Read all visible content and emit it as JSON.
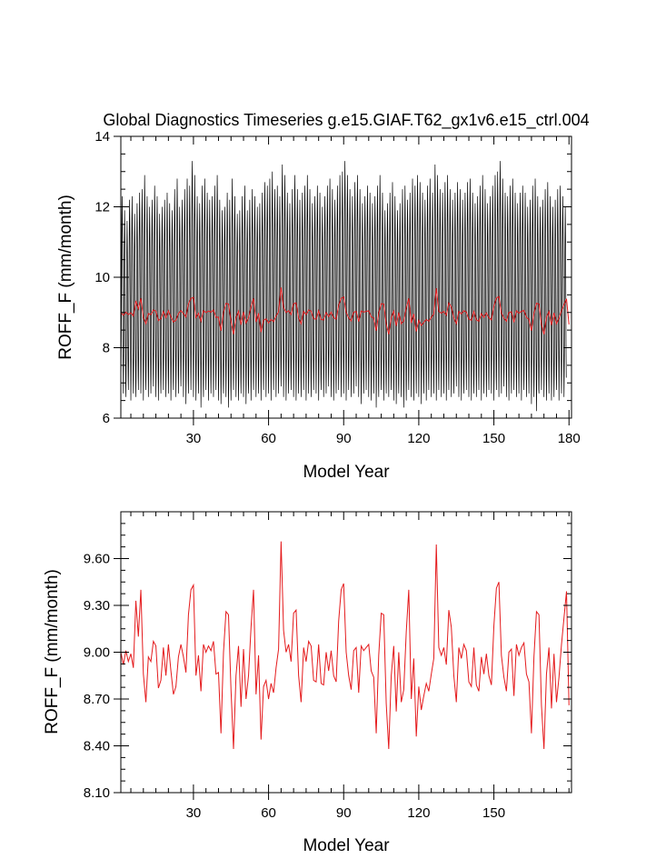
{
  "chart_data": [
    {
      "type": "line",
      "title": "Global Diagnostics Timeseries g.e15.GIAF.T62_gx1v6.e15_ctrl.004",
      "xlabel": "Model Year",
      "ylabel": "ROFF_F (mm/month)",
      "xlim": [
        1,
        181
      ],
      "ylim": [
        6,
        14
      ],
      "xticks": [
        30,
        60,
        90,
        120,
        150,
        180
      ],
      "yticks": [
        6,
        8,
        10,
        12,
        14
      ],
      "ytick_labels": [
        "6",
        "8",
        "10",
        "12",
        "14"
      ],
      "grid": false,
      "series": [
        {
          "color": "#000000",
          "kind": "monthly",
          "envelope_max": [
            12.3,
            11.9,
            11.6,
            12.2,
            12.3,
            11.8,
            12.1,
            12.4,
            12.5,
            12.9,
            12.3,
            12.0,
            12.2,
            12.6,
            12.3,
            11.8,
            12.0,
            12.2,
            12.4,
            12.1,
            11.9,
            12.5,
            12.8,
            12.0,
            12.2,
            12.5,
            12.8,
            12.6,
            13.3,
            12.9,
            12.3,
            12.1,
            12.6,
            12.8,
            12.4,
            12.2,
            12.3,
            12.6,
            12.9,
            12.2,
            11.9,
            12.0,
            12.4,
            12.2,
            12.8,
            12.3,
            11.8,
            11.9,
            12.3,
            12.6,
            11.9,
            12.2,
            12.5,
            12.3,
            12.0,
            12.1,
            12.4,
            12.7,
            12.6,
            12.8,
            13.0,
            12.5,
            12.6,
            12.3,
            13.2,
            12.9,
            12.4,
            12.1,
            12.5,
            12.9,
            12.5,
            12.2,
            12.4,
            12.6,
            12.9,
            12.5,
            12.1,
            12.3,
            12.6,
            12.4,
            12.0,
            12.3,
            12.6,
            12.8,
            12.5,
            12.2,
            12.6,
            12.9,
            13.0,
            13.3,
            12.9,
            12.5,
            12.3,
            12.7,
            12.9,
            12.5,
            12.1,
            12.3,
            12.6,
            12.4,
            12.1,
            12.3,
            12.6,
            12.9,
            12.4,
            11.9,
            12.1,
            12.4,
            12.7,
            12.3,
            11.9,
            12.1,
            12.5,
            12.6,
            12.2,
            12.4,
            12.8,
            12.6,
            12.9,
            12.7,
            12.4,
            12.2,
            12.6,
            12.8,
            12.4,
            13.2,
            12.9,
            12.5,
            12.4,
            12.7,
            12.9,
            12.5,
            12.2,
            12.4,
            12.7,
            12.5,
            12.2,
            12.4,
            12.7,
            12.8,
            12.4,
            12.1,
            12.3,
            12.6,
            12.9,
            12.5,
            12.1,
            12.3,
            12.6,
            12.9,
            13.0,
            13.3,
            12.8,
            12.4,
            12.3,
            12.6,
            12.8,
            12.4,
            12.1,
            12.4,
            12.6,
            12.4,
            12.0,
            12.2,
            12.6,
            12.8,
            12.3,
            12.0,
            12.2,
            12.5,
            12.7,
            12.3,
            12.0,
            12.2,
            12.5,
            12.6,
            12.3,
            12.0
          ],
          "envelope_min": [
            6.9,
            6.7,
            6.6,
            6.8,
            6.5,
            6.7,
            6.6,
            6.8,
            6.7,
            6.5,
            6.8,
            6.6,
            6.7,
            6.9,
            6.6,
            6.5,
            6.7,
            6.8,
            6.6,
            6.7,
            6.5,
            6.8,
            6.6,
            6.7,
            6.9,
            6.6,
            6.4,
            6.7,
            6.8,
            6.6,
            6.5,
            6.7,
            6.3,
            6.6,
            6.8,
            6.5,
            6.7,
            6.6,
            6.8,
            6.5,
            6.4,
            6.7,
            6.6,
            6.3,
            6.5,
            6.8,
            6.6,
            6.5,
            6.7,
            6.6,
            6.4,
            6.7,
            6.5,
            6.8,
            6.6,
            6.7,
            6.5,
            6.8,
            6.6,
            6.7,
            6.5,
            6.8,
            6.6,
            6.7,
            6.9,
            6.6,
            6.5,
            6.7,
            6.8,
            6.6,
            6.5,
            6.7,
            6.6,
            6.8,
            6.5,
            6.7,
            6.6,
            6.8,
            6.7,
            6.5,
            6.8,
            6.6,
            6.7,
            6.9,
            6.6,
            6.5,
            6.7,
            6.8,
            6.6,
            6.7,
            6.5,
            6.8,
            6.6,
            6.7,
            6.9,
            6.6,
            6.4,
            6.7,
            6.8,
            6.6,
            6.5,
            6.7,
            6.3,
            6.6,
            6.8,
            6.5,
            6.7,
            6.6,
            6.8,
            6.5,
            6.4,
            6.7,
            6.6,
            6.3,
            6.5,
            6.8,
            6.6,
            6.5,
            6.7,
            6.6,
            6.4,
            6.7,
            6.5,
            6.8,
            6.6,
            6.7,
            6.5,
            6.8,
            6.6,
            6.7,
            6.5,
            6.8,
            6.6,
            6.7,
            6.9,
            6.6,
            6.5,
            6.7,
            6.8,
            6.6,
            6.5,
            6.7,
            6.6,
            6.8,
            6.5,
            6.7,
            6.6,
            6.8,
            6.7,
            6.5,
            6.8,
            6.6,
            6.7,
            6.9,
            6.6,
            6.5,
            6.7,
            6.8,
            6.6,
            6.7,
            6.5,
            6.8,
            6.6,
            6.7,
            6.4,
            6.6,
            6.2,
            6.7,
            6.8,
            6.6,
            6.5,
            6.7,
            6.5,
            6.6,
            6.8,
            6.5,
            6.7,
            6.6,
            6.8,
            6.5,
            6.6
          ]
        },
        {
          "color": "#e41a1c",
          "kind": "annual",
          "values": [
            9.0,
            8.92,
            9.01,
            8.94,
            8.99,
            8.9,
            9.33,
            9.1,
            9.4,
            8.86,
            8.68,
            8.97,
            8.94,
            9.07,
            9.04,
            8.77,
            8.82,
            9.03,
            8.85,
            9.05,
            8.88,
            8.73,
            8.78,
            8.97,
            9.05,
            8.97,
            8.87,
            9.24,
            9.4,
            9.43,
            8.85,
            8.98,
            8.75,
            9.05,
            9.0,
            9.04,
            9.01,
            9.07,
            8.86,
            8.87,
            8.48,
            9.0,
            9.26,
            9.24,
            8.76,
            8.38,
            8.85,
            9.04,
            8.65,
            9.02,
            8.7,
            8.85,
            9.16,
            9.4,
            8.73,
            8.98,
            8.44,
            8.78,
            8.82,
            8.7,
            8.8,
            8.74,
            8.9,
            9.02,
            9.71,
            9.14,
            9.0,
            9.05,
            8.94,
            9.25,
            9.27,
            8.85,
            8.68,
            9.03,
            8.94,
            9.07,
            9.04,
            8.82,
            8.81,
            9.05,
            8.8,
            8.79,
            9.0,
            8.88,
            9.01,
            8.85,
            8.81,
            9.2,
            9.4,
            9.44,
            9.0,
            8.85,
            8.76,
            9.01,
            9.03,
            8.74,
            9.04,
            9.01,
            9.03,
            9.05,
            8.88,
            8.84,
            8.48,
            8.98,
            9.25,
            9.24,
            8.67,
            8.38,
            8.85,
            9.04,
            8.62,
            9.0,
            8.68,
            8.76,
            9.13,
            9.4,
            8.7,
            8.96,
            8.46,
            8.78,
            8.63,
            8.72,
            8.8,
            8.75,
            8.86,
            8.96,
            9.69,
            9.03,
            8.98,
            9.03,
            8.92,
            9.27,
            9.16,
            8.85,
            8.68,
            9.03,
            8.96,
            9.05,
            9.01,
            8.81,
            8.78,
            9.03,
            8.79,
            8.75,
            8.97,
            8.86,
            8.99,
            8.85,
            8.79,
            9.17,
            9.41,
            9.45,
            8.98,
            8.84,
            8.75,
            9.0,
            9.02,
            8.72,
            9.05,
            8.98,
            9.03,
            9.06,
            8.86,
            8.81,
            8.48,
            8.97,
            9.26,
            9.24,
            8.66,
            8.38,
            8.86,
            9.03,
            8.64,
            8.99,
            8.68,
            8.84,
            9.05,
            9.22,
            9.39,
            8.66
          ]
        }
      ]
    },
    {
      "type": "line",
      "title": "",
      "xlabel": "Model Year",
      "ylabel": "ROFF_F (mm/month)",
      "xlim": [
        1,
        181
      ],
      "ylim": [
        8.1,
        9.9
      ],
      "xticks": [
        30,
        60,
        90,
        120,
        150
      ],
      "yticks": [
        8.1,
        8.4,
        8.7,
        9.0,
        9.3,
        9.6
      ],
      "ytick_labels": [
        "8.10",
        "8.40",
        "8.70",
        "9.00",
        "9.30",
        "9.60"
      ],
      "grid": false,
      "series": [
        {
          "color": "#e41a1c",
          "kind": "annual",
          "values": [
            9.0,
            8.92,
            9.01,
            8.94,
            8.99,
            8.9,
            9.33,
            9.1,
            9.4,
            8.86,
            8.68,
            8.97,
            8.94,
            9.07,
            9.04,
            8.77,
            8.82,
            9.03,
            8.85,
            9.05,
            8.88,
            8.73,
            8.78,
            8.97,
            9.05,
            8.97,
            8.87,
            9.24,
            9.4,
            9.43,
            8.85,
            8.98,
            8.75,
            9.05,
            9.0,
            9.04,
            9.01,
            9.07,
            8.86,
            8.87,
            8.48,
            9.0,
            9.26,
            9.24,
            8.76,
            8.38,
            8.85,
            9.04,
            8.65,
            9.02,
            8.7,
            8.85,
            9.16,
            9.4,
            8.73,
            8.98,
            8.44,
            8.78,
            8.82,
            8.7,
            8.8,
            8.74,
            8.9,
            9.02,
            9.71,
            9.14,
            9.0,
            9.05,
            8.94,
            9.25,
            9.27,
            8.85,
            8.68,
            9.03,
            8.94,
            9.07,
            9.04,
            8.82,
            8.81,
            9.05,
            8.8,
            8.79,
            9.0,
            8.88,
            9.01,
            8.85,
            8.81,
            9.2,
            9.4,
            9.44,
            9.0,
            8.85,
            8.76,
            9.01,
            9.03,
            8.74,
            9.04,
            9.01,
            9.03,
            9.05,
            8.88,
            8.84,
            8.48,
            8.98,
            9.25,
            9.24,
            8.67,
            8.38,
            8.85,
            9.04,
            8.62,
            9.0,
            8.68,
            8.76,
            9.13,
            9.4,
            8.7,
            8.96,
            8.46,
            8.78,
            8.63,
            8.72,
            8.8,
            8.75,
            8.86,
            8.96,
            9.69,
            9.03,
            8.98,
            9.03,
            8.92,
            9.27,
            9.16,
            8.85,
            8.68,
            9.03,
            8.96,
            9.05,
            9.01,
            8.81,
            8.78,
            9.03,
            8.79,
            8.75,
            8.97,
            8.86,
            8.99,
            8.85,
            8.79,
            9.17,
            9.41,
            9.45,
            8.98,
            8.84,
            8.75,
            9.0,
            9.02,
            8.72,
            9.05,
            8.98,
            9.03,
            9.06,
            8.86,
            8.81,
            8.48,
            8.97,
            9.26,
            9.24,
            8.66,
            8.38,
            8.86,
            9.03,
            8.64,
            8.99,
            8.68,
            8.84,
            9.05,
            9.22,
            9.39,
            8.66
          ]
        }
      ]
    }
  ]
}
